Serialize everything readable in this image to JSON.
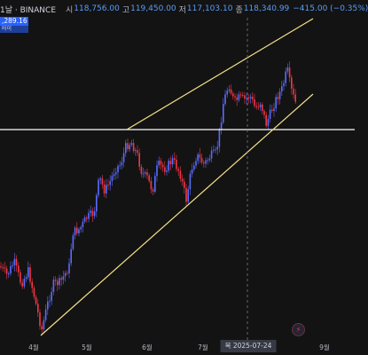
{
  "header": {
    "title": "1날 · BINANCE",
    "open_label": "시",
    "open": "118,756.00",
    "high_label": "고",
    "high": "119,450.00",
    "low_label": "저",
    "low": "117,103.10",
    "close_label": "종",
    "close": "118,340.99",
    "change": "−415.00 (−0.35%)"
  },
  "price_tag": {
    "value": ",289.16",
    "sub": "바이"
  },
  "x_axis": {
    "apr": "4월",
    "may": "5월",
    "jun": "6월",
    "jul": "7월",
    "sep": "9월"
  },
  "crosshair_date": "목 2025-07-24",
  "icons": {
    "alert": "lightning-icon"
  },
  "colors": {
    "up": "#5b6cff",
    "down": "#f23645",
    "trendline": "#f5e08a",
    "hline": "#ffffff",
    "background": "#131313"
  }
}
